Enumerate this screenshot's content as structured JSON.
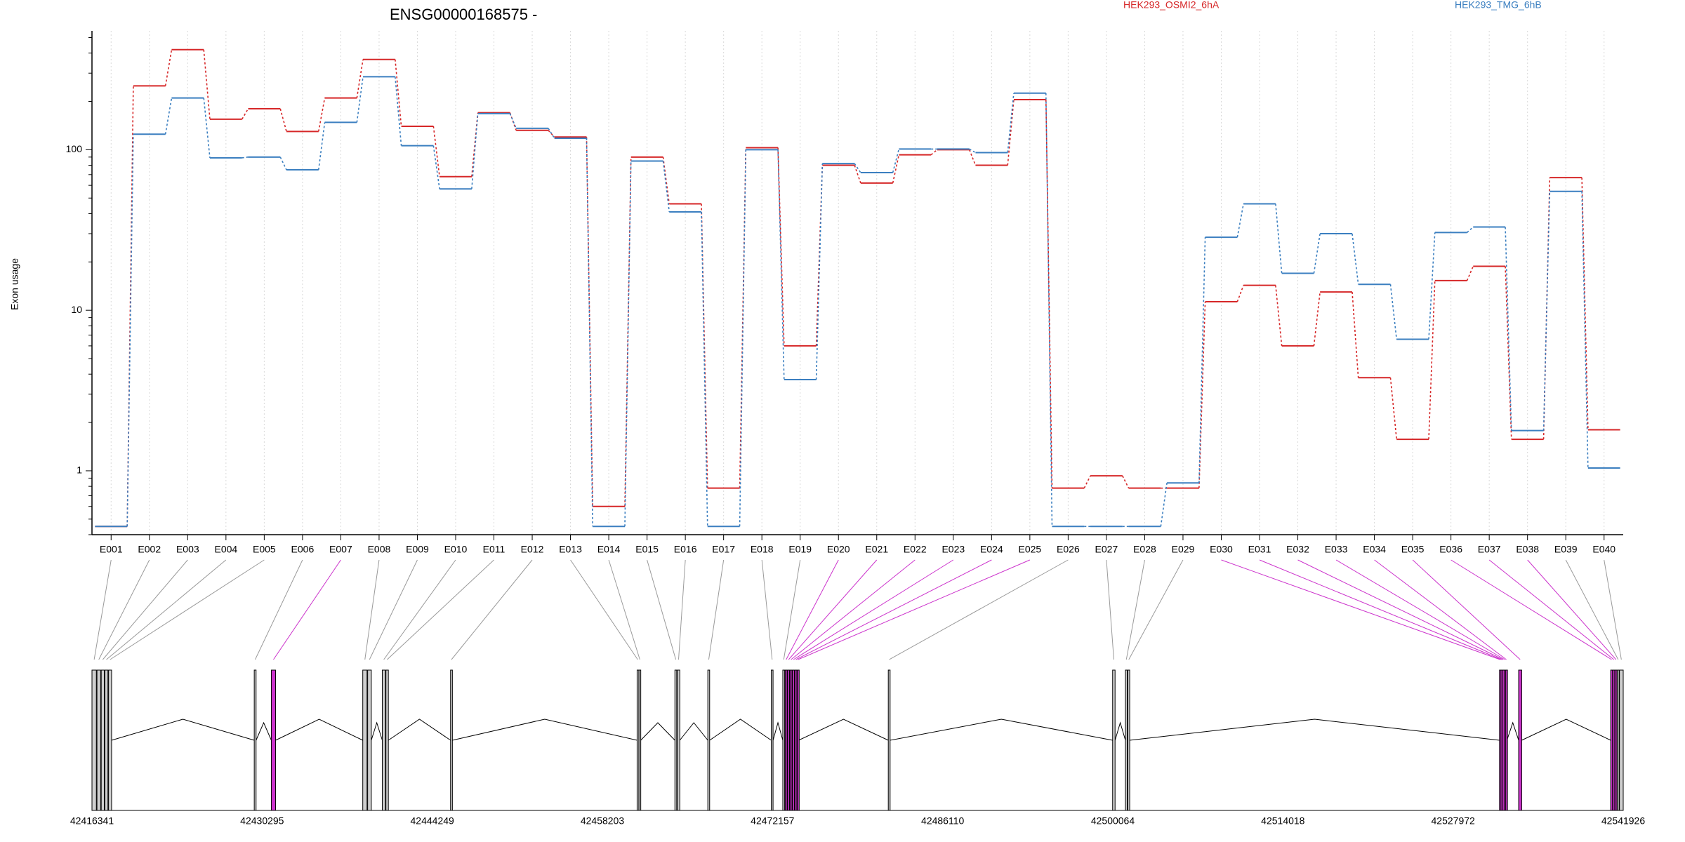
{
  "chart_data": {
    "type": "line",
    "title": "ENSG00000168575 -",
    "ylabel": "Exon usage",
    "yscale": "log",
    "ylim": [
      0.4,
      550
    ],
    "yticks": [
      1,
      10,
      100
    ],
    "yticks_labels": [
      "1",
      "10",
      "100"
    ],
    "categories": [
      "E001",
      "E002",
      "E003",
      "E004",
      "E005",
      "E006",
      "E007",
      "E008",
      "E009",
      "E010",
      "E011",
      "E012",
      "E013",
      "E014",
      "E015",
      "E016",
      "E017",
      "E018",
      "E019",
      "E020",
      "E021",
      "E022",
      "E023",
      "E024",
      "E025",
      "E026",
      "E027",
      "E028",
      "E029",
      "E030",
      "E031",
      "E032",
      "E033",
      "E034",
      "E035",
      "E036",
      "E037",
      "E038",
      "E039",
      "E040"
    ],
    "series": [
      {
        "name": "HEK293_OSMI2_6hA",
        "color": "#d62728",
        "values": [
          0.45,
          250,
          420,
          155,
          180,
          130,
          210,
          365,
          140,
          68,
          170,
          132,
          120,
          0.6,
          90,
          46,
          0.78,
          103,
          6,
          80,
          62,
          93,
          100,
          80,
          205,
          0.78,
          0.93,
          0.78,
          0.78,
          11.3,
          14.3,
          6,
          13,
          3.8,
          1.57,
          15.3,
          18.8,
          1.57,
          67,
          1.8
        ]
      },
      {
        "name": "HEK293_TMG_6hB",
        "color": "#3b7fc0",
        "values": [
          0.45,
          125,
          210,
          89,
          90,
          75,
          148,
          285,
          106,
          57,
          168,
          136,
          118,
          0.45,
          85,
          41,
          0.45,
          100,
          3.7,
          82,
          72,
          101,
          101,
          96,
          225,
          0.45,
          0.45,
          0.45,
          0.84,
          28.5,
          46,
          17,
          30,
          14.5,
          6.6,
          30.5,
          33,
          1.78,
          55,
          1.04
        ]
      }
    ],
    "legend_position": "top-right",
    "grid": "vertical dotted at each exon",
    "gene_model": {
      "coordinate_labels": [
        "42416341",
        "42430295",
        "42444249",
        "42458203",
        "42472157",
        "42486110",
        "42500064",
        "42514018",
        "42527972",
        "42541926"
      ],
      "highlight_color": "#cc33cc",
      "highlighted_exons": [
        "E007",
        "E020",
        "E021",
        "E022",
        "E023",
        "E024",
        "E025",
        "E030",
        "E031",
        "E032",
        "E033",
        "E034",
        "E035",
        "E036",
        "E037",
        "E038"
      ]
    }
  }
}
